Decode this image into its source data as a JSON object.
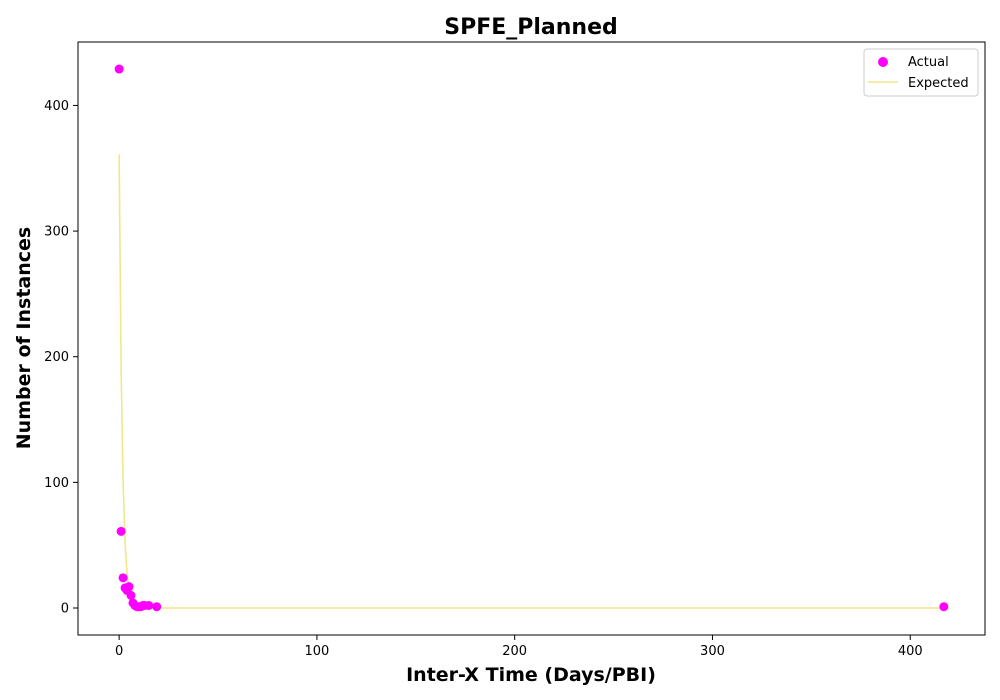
{
  "chart_data": {
    "type": "scatter",
    "title": "SPFE_Planned",
    "xlabel": "Inter-X Time (Days/PBI)",
    "ylabel": "Number of Instances",
    "xlim": [
      -20.8,
      437.8
    ],
    "ylim": [
      -21.5,
      450.5
    ],
    "xticks": [
      0,
      100,
      200,
      300,
      400
    ],
    "yticks": [
      0,
      100,
      200,
      300,
      400
    ],
    "grid": false,
    "legend_position": "top-right",
    "series": [
      {
        "name": "Actual",
        "kind": "scatter",
        "color": "#ff00ff",
        "points": [
          [
            0,
            429
          ],
          [
            1,
            61
          ],
          [
            2,
            24
          ],
          [
            3,
            16
          ],
          [
            4,
            14
          ],
          [
            5,
            17
          ],
          [
            6,
            10
          ],
          [
            7,
            4
          ],
          [
            8,
            2
          ],
          [
            9,
            1
          ],
          [
            10,
            1
          ],
          [
            11,
            1
          ],
          [
            12,
            2
          ],
          [
            13,
            2
          ],
          [
            15,
            2
          ],
          [
            19,
            1
          ],
          [
            417,
            1
          ]
        ]
      },
      {
        "name": "Expected",
        "kind": "line",
        "color": "#f0e68c",
        "points": [
          [
            0,
            361
          ],
          [
            1,
            190
          ],
          [
            2,
            100
          ],
          [
            3,
            52
          ],
          [
            4,
            27
          ],
          [
            5,
            14
          ],
          [
            6,
            7.5
          ],
          [
            7,
            4
          ],
          [
            8,
            2
          ],
          [
            10,
            0.6
          ],
          [
            12,
            0.15
          ],
          [
            15,
            0
          ],
          [
            20,
            0
          ],
          [
            100,
            0
          ],
          [
            200,
            0
          ],
          [
            300,
            0
          ],
          [
            417,
            0
          ]
        ]
      }
    ]
  }
}
